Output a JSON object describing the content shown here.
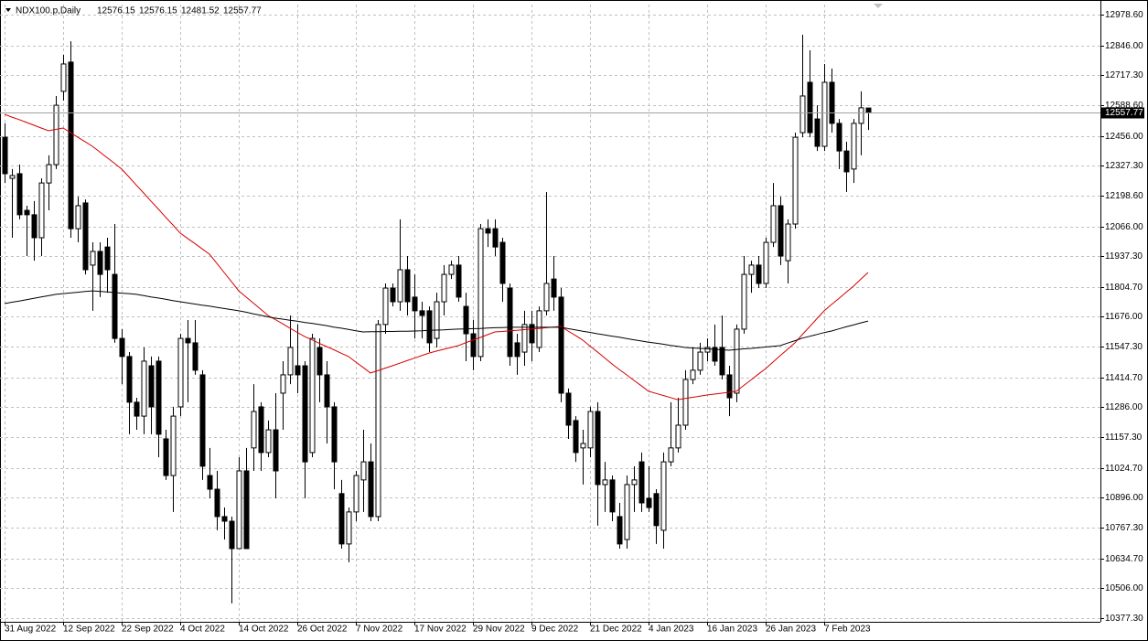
{
  "chart_data": {
    "type": "candlestick",
    "title": "NDX100.p,Daily",
    "categories": [
      "31 Aug 2022",
      null,
      null,
      null,
      null,
      null,
      null,
      null,
      "12 Sep 2022",
      null,
      null,
      null,
      null,
      null,
      null,
      null,
      "22 Sep 2022",
      null,
      null,
      null,
      null,
      null,
      null,
      null,
      "4 Oct 2022",
      null,
      null,
      null,
      null,
      null,
      null,
      null,
      "14 Oct 2022",
      null,
      null,
      null,
      null,
      null,
      null,
      null,
      "26 Oct 2022",
      null,
      null,
      null,
      null,
      null,
      null,
      null,
      "7 Nov 2022",
      null,
      null,
      null,
      null,
      null,
      null,
      null,
      "17 Nov 2022",
      null,
      null,
      null,
      null,
      null,
      null,
      null,
      "29 Nov 2022",
      null,
      null,
      null,
      null,
      null,
      null,
      null,
      "9 Dec 2022",
      null,
      null,
      null,
      null,
      null,
      null,
      null,
      "21 Dec 2022",
      null,
      null,
      null,
      null,
      null,
      null,
      null,
      "4 Jan 2023",
      null,
      null,
      null,
      null,
      null,
      null,
      null,
      "16 Jan 2023",
      null,
      null,
      null,
      null,
      null,
      null,
      null,
      "26 Jan 2023",
      null,
      null,
      null,
      null,
      null,
      null,
      null,
      "7 Feb 2023",
      null,
      null,
      null,
      null,
      null,
      null
    ],
    "open": [
      12450,
      12273,
      12293,
      12135,
      12116,
      12017,
      12253,
      12332,
      12648,
      12774,
      12056,
      12167,
      11899,
      11958,
      11977,
      11859,
      11583,
      11505,
      11308,
      11248,
      11465,
      11485,
      11150,
      10992,
      11288,
      11583,
      11564,
      11426,
      10992,
      10933,
      10815,
      10795,
      10677,
      11012,
      11111,
      11288,
      11091,
      11189,
      11347,
      11426,
      11465,
      11465,
      11091,
      11544,
      11426,
      11288,
      10914,
      10697,
      10835,
      10973,
      11051,
      10815,
      11643,
      11800,
      11741,
      11879,
      11761,
      11702,
      11702,
      11583,
      11741,
      11859,
      11899,
      11721,
      11603,
      11505,
      12056,
      12056,
      11997,
      11800,
      11564,
      11524,
      11643,
      11544,
      11702,
      11839,
      11761,
      11347,
      11229,
      11111,
      11111,
      11268,
      10953,
      10973,
      10815,
      10716,
      10953,
      11051,
      10894,
      10914,
      10756,
      11051,
      11111,
      11209,
      11406,
      11446,
      11524,
      11544,
      11544,
      11426,
      11347,
      11623,
      11859,
      11899,
      11820,
      11997,
      12155,
      11918,
      12076,
      12470,
      12687,
      12529,
      12411,
      12687,
      12510,
      12391,
      12313,
      12510,
      12576.15
    ],
    "high": [
      12510,
      12313,
      12332,
      12155,
      12175,
      12273,
      12372,
      12628,
      12805,
      12864,
      12194,
      12182,
      11997,
      11997,
      12017,
      12076,
      11623,
      11524,
      11327,
      11544,
      11505,
      11505,
      11189,
      11288,
      11603,
      11662,
      11662,
      11446,
      11111,
      11012,
      10854,
      10815,
      11071,
      11111,
      11386,
      11308,
      11229,
      11347,
      11485,
      11682,
      11643,
      11485,
      11603,
      11583,
      11485,
      11308,
      10973,
      10854,
      11012,
      11189,
      11130,
      11662,
      11820,
      11820,
      12096,
      11938,
      11859,
      11741,
      11721,
      11780,
      11899,
      11918,
      11938,
      11780,
      11662,
      12076,
      12096,
      12096,
      12017,
      11820,
      11603,
      11702,
      11702,
      11721,
      12214,
      11938,
      11800,
      11367,
      11248,
      11189,
      11288,
      11308,
      11051,
      10992,
      10874,
      10992,
      11032,
      11091,
      11032,
      10933,
      11091,
      11308,
      11327,
      11446,
      11544,
      11564,
      11583,
      11643,
      11682,
      11465,
      11643,
      11938,
      11918,
      11938,
      12017,
      12253,
      12194,
      12096,
      12470,
      12892,
      12825,
      12588,
      12766,
      12746,
      12529,
      12431,
      12529,
      12648,
      12576.15
    ],
    "low": [
      12253,
      12017,
      12096,
      11938,
      11918,
      11938,
      12135,
      12313,
      12608,
      12017,
      11997,
      11859,
      11702,
      11761,
      11780,
      11564,
      11386,
      11170,
      11189,
      11170,
      11170,
      11071,
      10973,
      10835,
      11248,
      11308,
      11426,
      10973,
      10894,
      10756,
      10716,
      10441,
      10677,
      10677,
      11012,
      11012,
      11071,
      10894,
      11189,
      11386,
      11347,
      10894,
      11071,
      11308,
      11130,
      10933,
      10677,
      10618,
      10795,
      10835,
      10795,
      10795,
      11603,
      11721,
      11702,
      11682,
      11583,
      11583,
      11524,
      11544,
      11682,
      11839,
      11741,
      11485,
      11446,
      11485,
      11977,
      11938,
      11741,
      11465,
      11426,
      11465,
      11485,
      11524,
      11682,
      11702,
      11308,
      11150,
      11051,
      10953,
      11071,
      10776,
      10835,
      10795,
      10677,
      10677,
      10835,
      10835,
      10835,
      10697,
      10677,
      11032,
      11091,
      11189,
      11386,
      11426,
      11485,
      11465,
      11406,
      11248,
      11308,
      11603,
      11780,
      11800,
      11800,
      11977,
      11899,
      11820,
      12056,
      12450,
      12450,
      12391,
      12391,
      12470,
      12313,
      12214,
      12253,
      12372,
      12481.52
    ],
    "close": [
      12293,
      12285,
      12116,
      12116,
      12017,
      12253,
      12332,
      12588,
      12766,
      12056,
      12155,
      11879,
      11958,
      11859,
      11879,
      11583,
      11505,
      11308,
      11248,
      11485,
      11288,
      11170,
      10992,
      11248,
      11583,
      11564,
      11446,
      11032,
      10933,
      10815,
      10795,
      10677,
      11012,
      10677,
      11268,
      11091,
      11189,
      11012,
      11426,
      11544,
      11426,
      11051,
      11583,
      11426,
      11288,
      11051,
      10697,
      10835,
      10992,
      11051,
      10815,
      11643,
      11800,
      11741,
      11879,
      11741,
      11702,
      11682,
      11564,
      11741,
      11859,
      11899,
      11761,
      11603,
      11505,
      12056,
      12037,
      11977,
      11820,
      11505,
      11505,
      11643,
      11564,
      11702,
      11820,
      11761,
      11347,
      11209,
      11091,
      11130,
      11268,
      10953,
      10973,
      10835,
      10697,
      10953,
      10973,
      10874,
      10854,
      10776,
      11051,
      11111,
      11209,
      11406,
      11446,
      11524,
      11544,
      11485,
      11426,
      11327,
      11623,
      11859,
      11899,
      11820,
      11997,
      12155,
      11938,
      12076,
      12450,
      12628,
      12470,
      12411,
      12687,
      12510,
      12391,
      12301,
      12510,
      12577,
      12557.77
    ],
    "lines": [
      {
        "color": "#d40000",
        "values": [
          12549,
          12537,
          12526,
          12514,
          12502,
          12490,
          12478,
          12484,
          12490,
          12470,
          12450,
          12431,
          12411,
          12387,
          12362,
          12338,
          12313,
          12279,
          12244,
          12210,
          12175,
          12141,
          12106,
          12072,
          12037,
          12014,
          11992,
          11969,
          11946,
          11907,
          11867,
          11828,
          11788,
          11762,
          11735,
          11709,
          11682,
          11664,
          11646,
          11627,
          11609,
          11591,
          11577,
          11562,
          11548,
          11534,
          11519,
          11505,
          11481,
          11458,
          11434,
          11444,
          11455,
          11465,
          11476,
          11487,
          11498,
          11509,
          11520,
          11528,
          11536,
          11544,
          11552,
          11564,
          11576,
          11587,
          11599,
          11611,
          11613,
          11616,
          11618,
          11621,
          11623,
          11626,
          11629,
          11632,
          11635,
          11615,
          11596,
          11576,
          11550,
          11525,
          11499,
          11473,
          11449,
          11426,
          11402,
          11379,
          11355,
          11346,
          11337,
          11328,
          11319,
          11324,
          11329,
          11334,
          11339,
          11343,
          11347,
          11351,
          11355,
          11380,
          11404,
          11429,
          11453,
          11481,
          11509,
          11536,
          11564,
          11599,
          11633,
          11668,
          11702,
          11729,
          11755,
          11782,
          11808,
          11838,
          11867
        ]
      },
      {
        "color": "#000000",
        "values": [
          11733,
          11739,
          11744,
          11750,
          11756,
          11762,
          11767,
          11773,
          11776,
          11779,
          11782,
          11785,
          11788,
          11786,
          11783,
          11781,
          11778,
          11776,
          11773,
          11768,
          11762,
          11757,
          11752,
          11746,
          11741,
          11736,
          11731,
          11726,
          11722,
          11717,
          11712,
          11707,
          11702,
          11696,
          11689,
          11683,
          11676,
          11670,
          11666,
          11661,
          11657,
          11652,
          11648,
          11643,
          11638,
          11632,
          11627,
          11622,
          11616,
          11611,
          11612,
          11612,
          11613,
          11613,
          11614,
          11614,
          11615,
          11616,
          11618,
          11619,
          11620,
          11622,
          11623,
          11624,
          11625,
          11626,
          11628,
          11629,
          11630,
          11631,
          11631,
          11631,
          11631,
          11631,
          11631,
          11631,
          11631,
          11625,
          11620,
          11614,
          11609,
          11603,
          11598,
          11593,
          11588,
          11582,
          11577,
          11572,
          11567,
          11563,
          11558,
          11553,
          11549,
          11544,
          11542,
          11540,
          11538,
          11536,
          11534,
          11532,
          11535,
          11538,
          11540,
          11543,
          11546,
          11549,
          11552,
          11563,
          11573,
          11584,
          11592,
          11600,
          11608,
          11615,
          11624,
          11633,
          11641,
          11650,
          11658
        ]
      }
    ],
    "ylim": [
      10361.5,
      13022.0
    ],
    "yticks": [
      {
        "value": 12978.6,
        "label": "12978.60"
      },
      {
        "value": 12846,
        "label": "12846.00"
      },
      {
        "value": 12717.3,
        "label": "12717.30"
      },
      {
        "value": 12588.6,
        "label": "12588.60"
      },
      {
        "value": 12456,
        "label": "12456.00"
      },
      {
        "value": 12327.3,
        "label": "12327.30"
      },
      {
        "value": 12198.6,
        "label": "12198.60"
      },
      {
        "value": 12066,
        "label": "12066.00"
      },
      {
        "value": 11937.3,
        "label": "11937.30"
      },
      {
        "value": 11804.7,
        "label": "11804.70"
      },
      {
        "value": 11676,
        "label": "11676.00"
      },
      {
        "value": 11547.3,
        "label": "11547.30"
      },
      {
        "value": 11414.7,
        "label": "11414.70"
      },
      {
        "value": 11286,
        "label": "11286.00"
      },
      {
        "value": 11157.3,
        "label": "11157.30"
      },
      {
        "value": 11024.7,
        "label": "11024.70"
      },
      {
        "value": 10896,
        "label": "10896.00"
      },
      {
        "value": 10767.3,
        "label": "10767.30"
      },
      {
        "value": 10634.7,
        "label": "10634.70"
      },
      {
        "value": 10506,
        "label": "10506.00"
      },
      {
        "value": 10377.3,
        "label": "10377.30"
      }
    ],
    "grid": true,
    "up_color": "#ffffff",
    "down_color": "#000000"
  }
}
